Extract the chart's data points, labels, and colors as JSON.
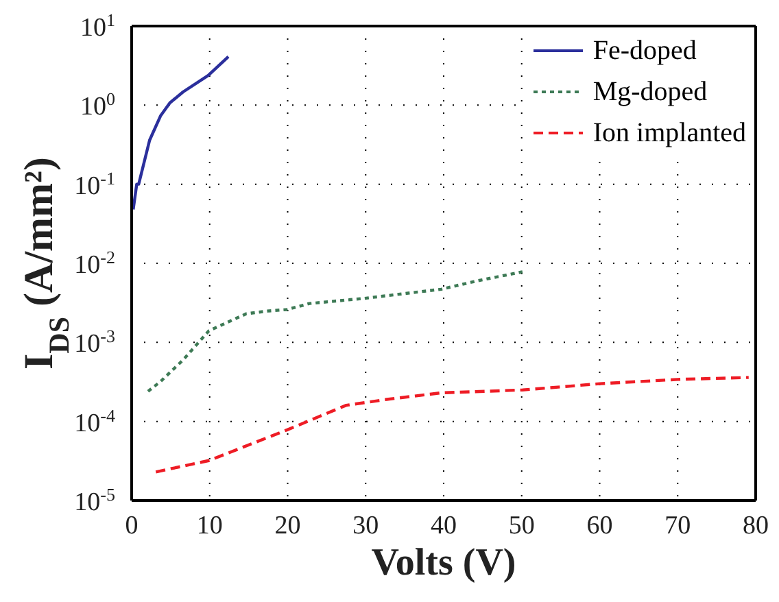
{
  "chart_data": {
    "type": "line",
    "xlabel": "Volts (V)",
    "ylabel": "I$_{DS}$ (A/mm²)",
    "log": "y",
    "grid": true,
    "legend": "top right",
    "xlim": [
      0,
      80
    ],
    "xticks": [
      0,
      10,
      20,
      30,
      40,
      50,
      60,
      70,
      80
    ],
    "ylim": [
      1e-05,
      10
    ],
    "yticks": [
      {
        "value": 1e-05,
        "label": "10$^{-5}$"
      },
      {
        "value": 0.0001,
        "label": "10$^{-4}$"
      },
      {
        "value": 0.001,
        "label": "10$^{-3}$"
      },
      {
        "value": 0.01,
        "label": "10$^{-2}$"
      },
      {
        "value": 0.1,
        "label": "10$^{-1}$"
      },
      {
        "value": 1,
        "label": "10$^{0}$"
      },
      {
        "value": 10,
        "label": "10$^{1}$"
      }
    ],
    "series": [
      {
        "name": "Fe-doped",
        "color": "#2b2f9c",
        "line_style": "solid",
        "x": [
          0.2,
          0.65,
          0.9,
          2.3,
          3.7,
          4.9,
          6.6,
          9.8,
          12.4
        ],
        "values": [
          0.048,
          0.1,
          0.1,
          0.36,
          0.73,
          1.07,
          1.47,
          2.37,
          4.1
        ]
      },
      {
        "name": "Mg-doped",
        "color": "#3d7a55",
        "line_style": "dotted",
        "x": [
          2.1,
          3.7,
          6.6,
          9.9,
          14.7,
          17.6,
          19.9,
          22.8,
          29.8,
          39.7,
          44.3,
          50.1
        ],
        "values": [
          0.00024,
          0.00032,
          0.0006,
          0.0014,
          0.0023,
          0.0025,
          0.0026,
          0.0031,
          0.0036,
          0.0047,
          0.006,
          0.0078
        ]
      },
      {
        "name": "Ion implanted",
        "color": "#ee1c25",
        "line_style": "dashed",
        "x": [
          3.1,
          9.9,
          19.9,
          27.5,
          32.7,
          39.7,
          50.1,
          60,
          70,
          79.1
        ],
        "values": [
          2.3e-05,
          3.2e-05,
          7.8e-05,
          0.00016,
          0.00019,
          0.00023,
          0.00025,
          0.0003,
          0.00034,
          0.00036
        ]
      }
    ]
  }
}
